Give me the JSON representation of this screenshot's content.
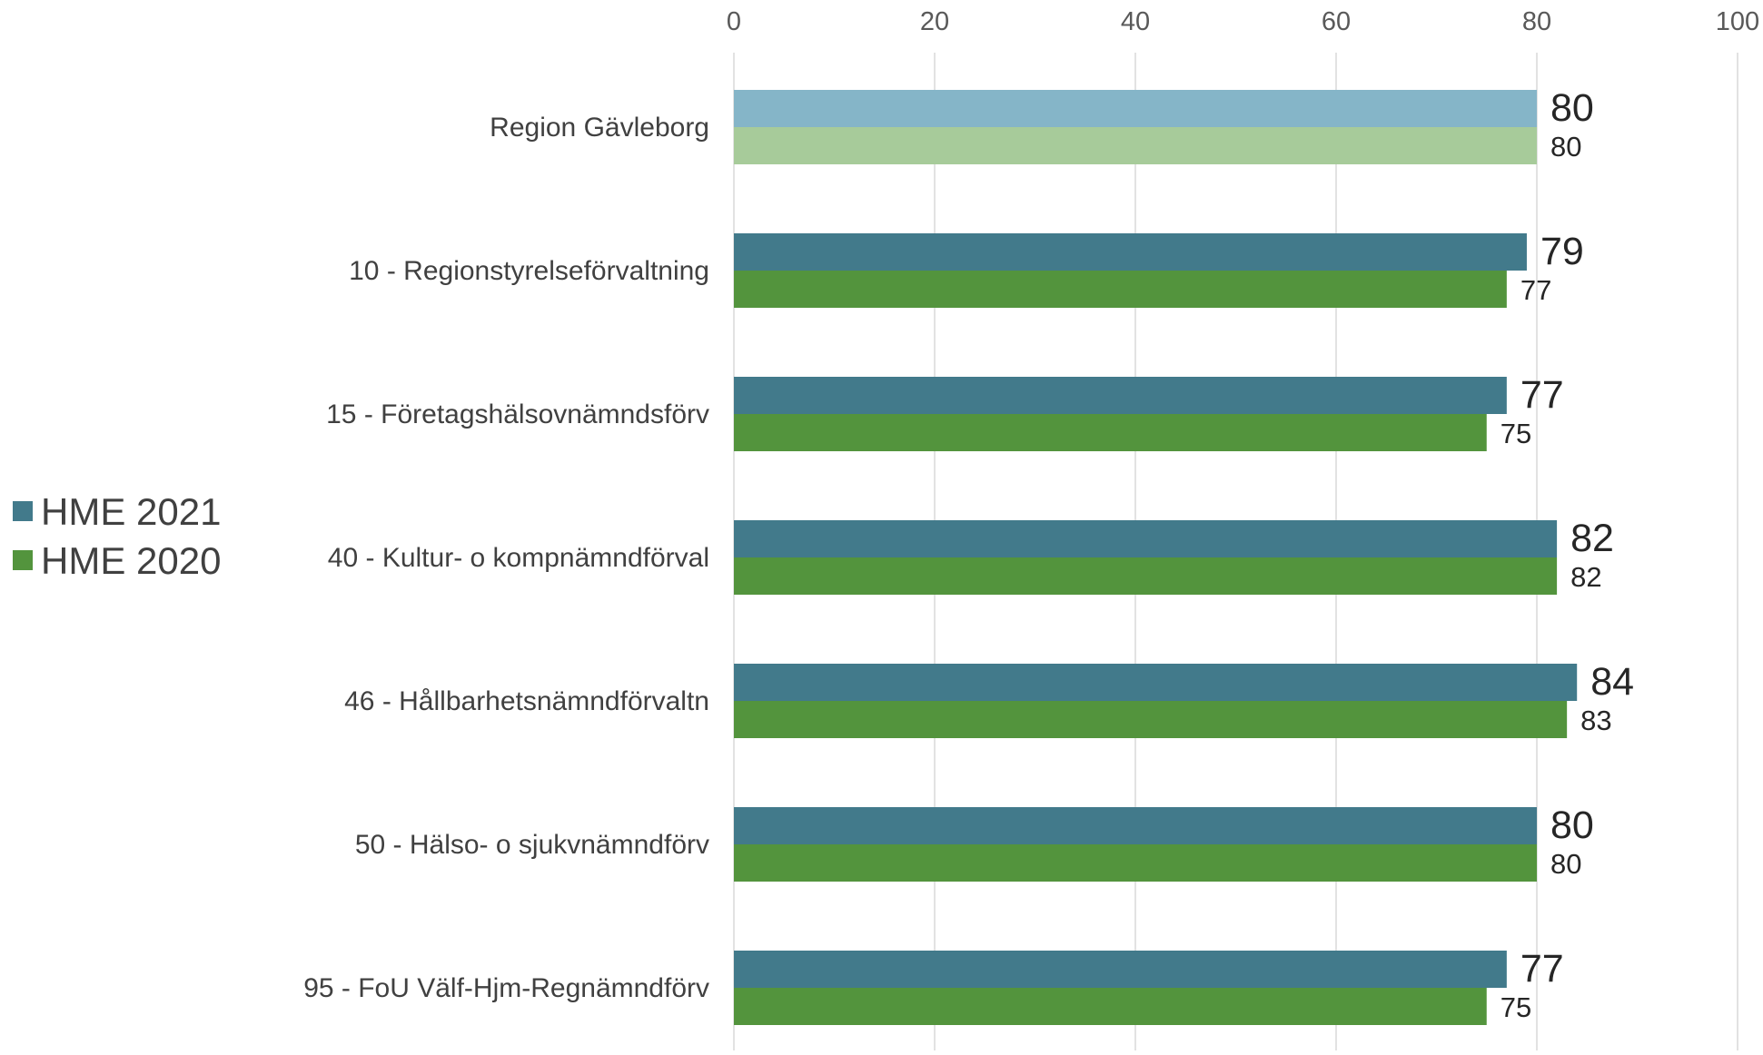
{
  "chart_data": {
    "type": "bar",
    "orientation": "horizontal",
    "title": "",
    "xlabel": "",
    "ylabel": "",
    "xlim": [
      0,
      100
    ],
    "x_ticks": [
      0,
      20,
      40,
      60,
      80,
      100
    ],
    "x_axis_position": "top",
    "grid": true,
    "legend_position": "left",
    "categories": [
      "Region Gävleborg",
      "10 - Regionstyrelseförvaltning",
      "15 - Företagshälsovnämndsförv",
      "40 - Kultur- o kompnämndförval",
      "46 - Hållbarhetsnämndförvaltn",
      "50 - Hälso- o sjukvnämndförv",
      "95 - FoU Välf-Hjm-Regnämndförv"
    ],
    "series": [
      {
        "name": "HME 2021",
        "color": "#427A8B",
        "highlight_color": "#85B5C8",
        "values": [
          80,
          79,
          77,
          82,
          84,
          80,
          77
        ]
      },
      {
        "name": "HME 2020",
        "color": "#53943D",
        "highlight_color": "#A7CB9A",
        "values": [
          80,
          77,
          75,
          82,
          83,
          80,
          75
        ]
      }
    ],
    "highlighted_category": "Region Gävleborg"
  },
  "colors": {
    "grid": "#D9D9D9",
    "tick_text": "#595959",
    "category_text": "#404040",
    "legend_text": "#404040",
    "value_label": "#262626"
  }
}
